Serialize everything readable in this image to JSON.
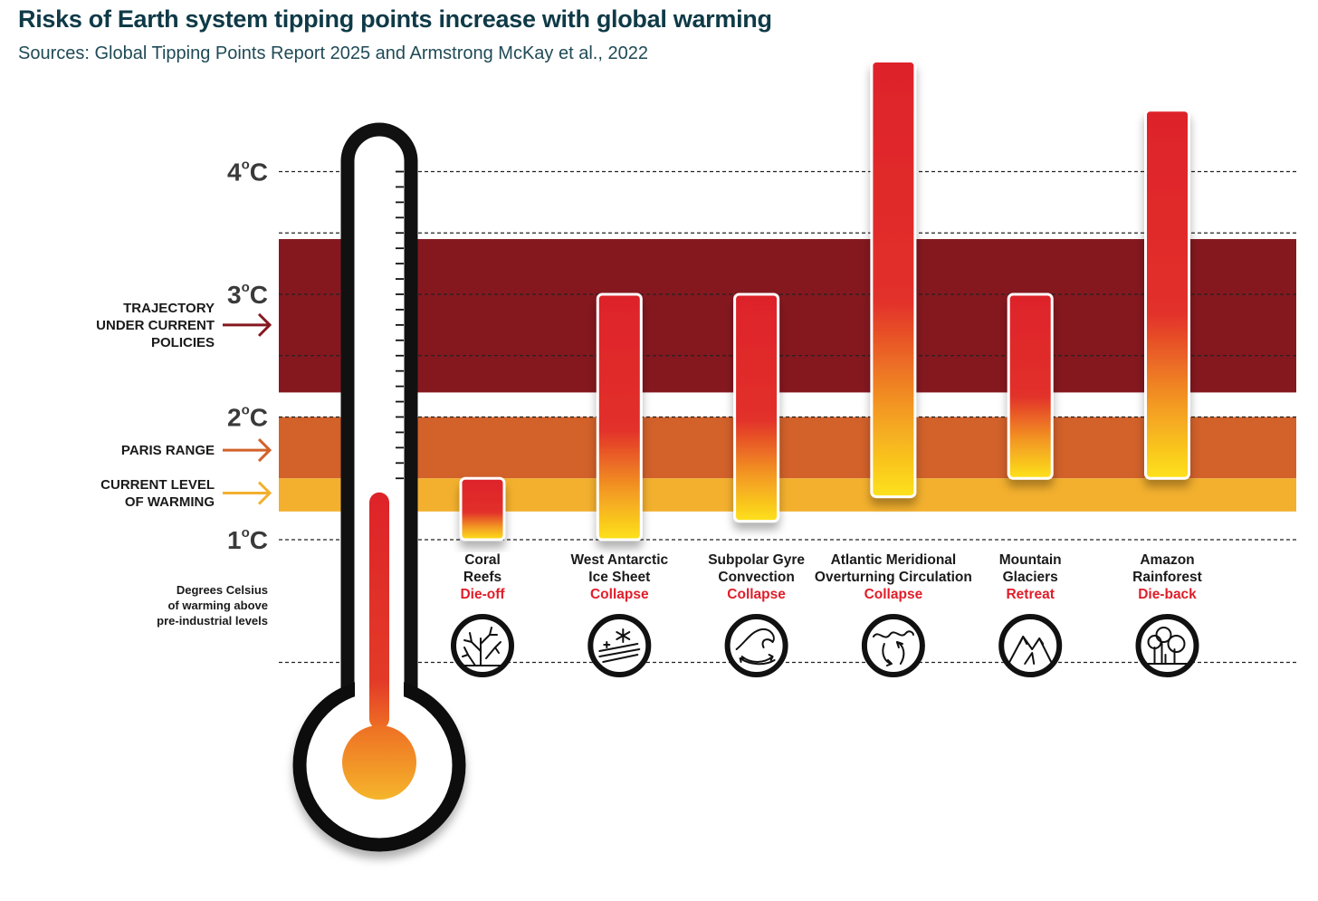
{
  "title": "Risks of Earth system tipping points increase with global warming",
  "subtitle": "Sources: Global Tipping Points Report 2025 and Armstrong McKay et al., 2022",
  "colors": {
    "trajectory_band": "#85181f",
    "paris_band": "#d2612a",
    "current_band": "#f3b02e",
    "bar_top": "#de2329",
    "bar_bottom": "#fde21c",
    "grid": "#222222",
    "thermometer_outline": "#111111",
    "title": "#0f3a47",
    "outcome_text": "#e01e2a"
  },
  "chart_data": {
    "type": "floating-bar",
    "title": "Risks of Earth system tipping points increase with global warming",
    "subtitle": "Sources: Global Tipping Points Report 2025 and Armstrong McKay et al., 2022",
    "y_axis": {
      "label": "Degrees Celsius of warming above pre-industrial levels",
      "label_lines": [
        "Degrees Celsius",
        "of warming above",
        "pre-industrial levels"
      ],
      "unit": "°C",
      "range": [
        0,
        5
      ],
      "ticks": [
        {
          "value": 1,
          "num": "1",
          "unit": "C"
        },
        {
          "value": 2,
          "num": "2",
          "unit": "C"
        },
        {
          "value": 3,
          "num": "3",
          "unit": "C"
        },
        {
          "value": 4,
          "num": "4",
          "unit": "C"
        }
      ],
      "gridlines": [
        0,
        1,
        2,
        2.5,
        3,
        3.5,
        4
      ]
    },
    "bands": [
      {
        "name": "trajectory",
        "label_lines": [
          "TRAJECTORY",
          "UNDER CURRENT",
          "POLICIES"
        ],
        "from": 2.2,
        "to": 3.45,
        "color": "#85181f"
      },
      {
        "name": "paris",
        "label_lines": [
          "PARIS RANGE"
        ],
        "from": 1.5,
        "to": 2.0,
        "color": "#d2612a"
      },
      {
        "name": "current",
        "label_lines": [
          "CURRENT LEVEL",
          "OF WARMING"
        ],
        "from": 1.23,
        "to": 1.5,
        "color": "#f3b02e"
      }
    ],
    "current_warming": 1.4,
    "categories": [
      {
        "name_lines": [
          "Coral",
          "Reefs"
        ],
        "outcome": "Die-off",
        "icon": "coral-icon",
        "low": 1.0,
        "high": 1.5
      },
      {
        "name_lines": [
          "West Antarctic",
          "Ice Sheet"
        ],
        "outcome": "Collapse",
        "icon": "ice-sheet-icon",
        "low": 1.0,
        "high": 3.0
      },
      {
        "name_lines": [
          "Subpolar Gyre",
          "Convection"
        ],
        "outcome": "Collapse",
        "icon": "gyre-icon",
        "low": 1.15,
        "high": 3.0
      },
      {
        "name_lines": [
          "Atlantic Meridional",
          "Overturning Circulation"
        ],
        "outcome": "Collapse",
        "icon": "amoc-icon",
        "low": 1.35,
        "high": 4.9
      },
      {
        "name_lines": [
          "Mountain",
          "Glaciers"
        ],
        "outcome": "Retreat",
        "icon": "mountain-icon",
        "low": 1.5,
        "high": 3.0
      },
      {
        "name_lines": [
          "Amazon",
          "Rainforest"
        ],
        "outcome": "Die-back",
        "icon": "forest-icon",
        "low": 1.5,
        "high": 4.5
      }
    ]
  }
}
